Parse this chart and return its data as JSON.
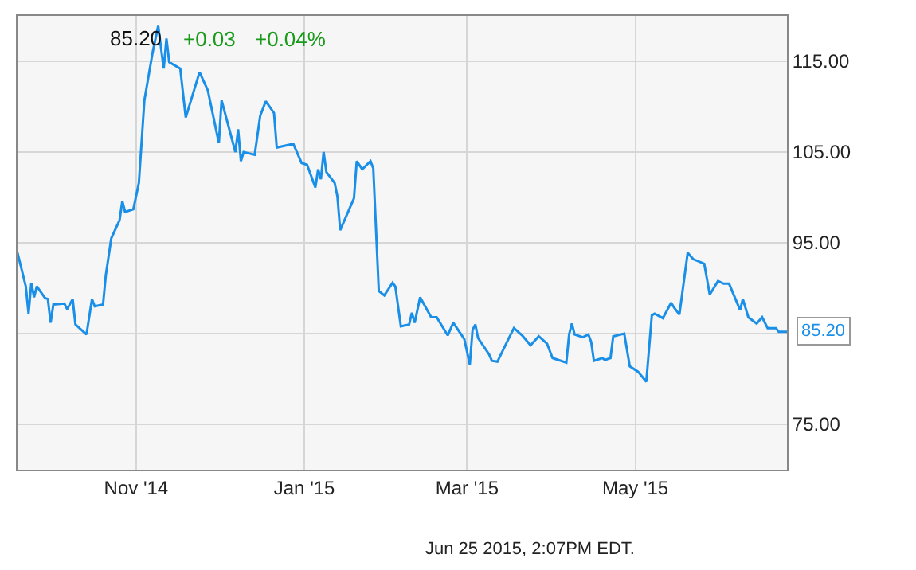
{
  "chart_data": {
    "type": "line",
    "title": "85.20",
    "x": [
      "2014-09-19",
      "2014-09-22",
      "2014-09-23",
      "2014-09-24",
      "2014-09-25",
      "2014-09-26",
      "2014-09-29",
      "2014-09-30",
      "2014-10-01",
      "2014-10-02",
      "2014-10-06",
      "2014-10-07",
      "2014-10-09",
      "2014-10-10",
      "2014-10-14",
      "2014-10-16",
      "2014-10-17",
      "2014-10-20",
      "2014-10-21",
      "2014-10-23",
      "2014-10-26",
      "2014-10-27",
      "2014-10-28",
      "2014-10-31",
      "2014-11-02",
      "2014-11-04",
      "2014-11-07",
      "2014-11-09",
      "2014-11-11",
      "2014-11-12",
      "2014-11-13",
      "2014-11-17",
      "2014-11-19",
      "2014-11-24",
      "2014-11-27",
      "2014-12-01",
      "2014-12-02",
      "2014-12-07",
      "2014-12-08",
      "2014-12-09",
      "2014-12-10",
      "2014-12-14",
      "2014-12-16",
      "2014-12-18",
      "2014-12-21",
      "2014-12-22",
      "2014-12-28",
      "2014-12-31",
      "2015-01-02",
      "2015-01-05",
      "2015-01-06",
      "2015-01-07",
      "2015-01-08",
      "2015-01-09",
      "2015-01-12",
      "2015-01-13",
      "2015-01-14",
      "2015-01-19",
      "2015-01-20",
      "2015-01-22",
      "2015-01-25",
      "2015-01-26",
      "2015-01-28",
      "2015-01-30",
      "2015-02-02",
      "2015-02-03",
      "2015-02-05",
      "2015-02-08",
      "2015-02-09",
      "2015-02-10",
      "2015-02-12",
      "2015-02-16",
      "2015-02-18",
      "2015-02-22",
      "2015-02-24",
      "2015-02-28",
      "2015-03-02",
      "2015-03-03",
      "2015-03-04",
      "2015-03-05",
      "2015-03-09",
      "2015-03-10",
      "2015-03-12",
      "2015-03-16",
      "2015-03-18",
      "2015-03-21",
      "2015-03-24",
      "2015-03-27",
      "2015-03-30",
      "2015-04-01",
      "2015-04-06",
      "2015-04-07",
      "2015-04-08",
      "2015-04-09",
      "2015-04-12",
      "2015-04-14",
      "2015-04-15",
      "2015-04-16",
      "2015-04-19",
      "2015-04-20",
      "2015-04-22",
      "2015-04-23",
      "2015-04-27",
      "2015-04-29",
      "2015-05-02",
      "2015-05-05",
      "2015-05-07",
      "2015-05-08",
      "2015-05-11",
      "2015-05-14",
      "2015-05-15",
      "2015-05-17",
      "2015-05-20",
      "2015-05-22",
      "2015-05-26",
      "2015-05-28",
      "2015-05-31",
      "2015-06-02",
      "2015-06-04",
      "2015-06-08",
      "2015-06-09",
      "2015-06-11",
      "2015-06-14",
      "2015-06-16",
      "2015-06-18",
      "2015-06-21",
      "2015-06-22",
      "2015-06-25"
    ],
    "series": [
      {
        "color": "#1a8fe8",
        "values": [
          93.9,
          90.2,
          87.2,
          90.6,
          89.0,
          90.2,
          88.9,
          88.8,
          86.2,
          88.2,
          88.3,
          87.7,
          88.8,
          86.0,
          84.9,
          88.8,
          88.0,
          88.2,
          91.4,
          95.5,
          97.5,
          99.6,
          98.4,
          98.7,
          101.6,
          110.7,
          116.0,
          118.9,
          114.2,
          117.5,
          114.9,
          114.2,
          108.8,
          113.8,
          111.8,
          106.0,
          110.7,
          105.0,
          107.5,
          104.0,
          105.0,
          104.7,
          109.0,
          110.6,
          109.3,
          105.5,
          105.9,
          103.8,
          103.6,
          101.1,
          103.1,
          102.0,
          105.0,
          102.8,
          101.6,
          100.1,
          96.4,
          99.9,
          104.0,
          103.1,
          104.0,
          103.2,
          89.7,
          89.2,
          90.6,
          90.2,
          85.8,
          86.0,
          87.3,
          86.2,
          89.0,
          86.8,
          86.8,
          84.8,
          86.2,
          84.4,
          81.6,
          85.4,
          86.0,
          84.5,
          82.7,
          82.0,
          81.9,
          84.4,
          85.6,
          84.8,
          83.7,
          84.7,
          83.9,
          82.3,
          81.8,
          84.9,
          86.1,
          84.9,
          84.6,
          84.9,
          84.1,
          82.0,
          82.3,
          82.1,
          82.3,
          84.7,
          85.0,
          81.4,
          80.8,
          79.7,
          87.0,
          87.2,
          86.7,
          88.4,
          87.9,
          87.1,
          93.9,
          93.2,
          92.7,
          89.3,
          90.8,
          90.5,
          90.5,
          87.6,
          88.8,
          86.8,
          86.1,
          86.8,
          85.6,
          85.6,
          85.2,
          85.2
        ]
      }
    ],
    "xlim": [
      "2014-09-19",
      "2015-06-25"
    ],
    "xticks": [
      {
        "value": "2014-11-01",
        "label": "Nov '14"
      },
      {
        "value": "2015-01-01",
        "label": "Jan '15"
      },
      {
        "value": "2015-03-01",
        "label": "Mar '15"
      },
      {
        "value": "2015-05-01",
        "label": "May '15"
      }
    ],
    "ylim": [
      70,
      120
    ],
    "yticks": [
      {
        "value": 75,
        "label": "75.00"
      },
      {
        "value": 85,
        "label": null
      },
      {
        "value": 95,
        "label": "95.00"
      },
      {
        "value": 105,
        "label": "105.00"
      },
      {
        "value": 115,
        "label": "115.00"
      }
    ],
    "grid": true,
    "marker": "none",
    "line_style": "solid",
    "annotations": [
      "+0.03",
      "+0.04%",
      {
        "text": "85.20",
        "x": "2015-06-25",
        "y": 85.2
      },
      "Jun 25 2015, 2:07PM EDT."
    ]
  }
}
